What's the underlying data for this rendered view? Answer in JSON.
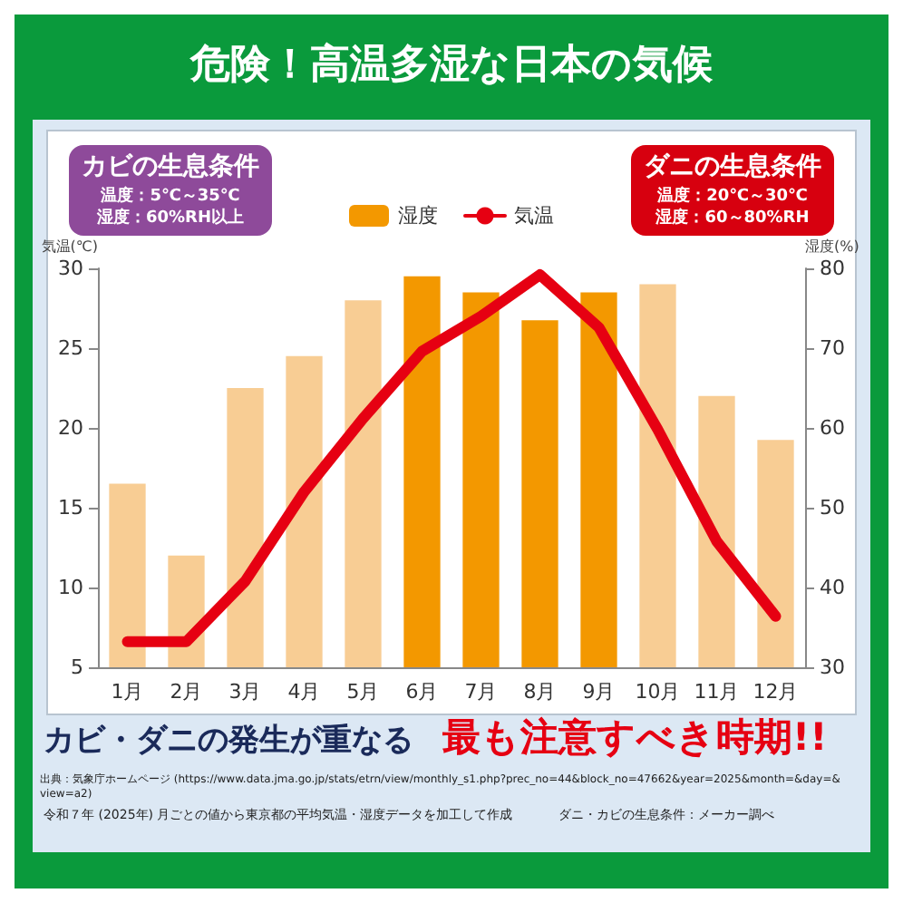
{
  "chart_data": {
    "type": "bar",
    "title": "危険！高温多湿な日本の気候",
    "categories": [
      "1月",
      "2月",
      "3月",
      "4月",
      "5月",
      "6月",
      "7月",
      "8月",
      "9月",
      "10月",
      "11月",
      "12月"
    ],
    "series": [
      {
        "name": "湿度",
        "axis": "y2",
        "color": "#f39800",
        "colors": [
          "#f8cd94",
          "#f8cd94",
          "#f8cd94",
          "#f8cd94",
          "#f8cd94",
          "#f39800",
          "#f39800",
          "#f39800",
          "#f39800",
          "#f8cd94",
          "#f8cd94",
          "#f8cd94"
        ],
        "values": [
          53,
          44,
          65,
          69,
          76,
          79,
          77,
          73.5,
          77,
          78,
          64,
          58.5
        ]
      },
      {
        "name": "気温",
        "type": "line",
        "color": "#e60012",
        "values": [
          6.6,
          6.6,
          10.4,
          16,
          20.6,
          24.8,
          27,
          29.6,
          26.3,
          19.9,
          12.9,
          8.2
        ]
      }
    ],
    "ylabel": "気温(℃)",
    "y2label": "湿度(%)",
    "ylim": [
      5,
      30
    ],
    "yticks": [
      5,
      10,
      15,
      20,
      25,
      30
    ],
    "y2lim": [
      30,
      80
    ],
    "y2ticks": [
      30,
      40,
      50,
      60,
      70,
      80
    ],
    "legend": "top",
    "marker": "none",
    "annotations": [
      "カビの生息条件",
      "温度：5℃～35℃",
      "湿度：60%RH以上",
      "ダニの生息条件",
      "温度：20℃～30℃",
      "湿度：60～80%RH",
      "カビ・ダニの発生が重なる",
      "最も注意すべき時期!!",
      "出典：気象庁ホームページ (https://www.data.jma.go.jp/stats/etrn/view/monthly_s1.php?prec_no=44&block_no=47662&year=2025&month=&day=&view=a2)",
      "令和７年 (2025年) 月ごとの値から東京都の平均気温・湿度データを加工して作成",
      "ダニ・カビの生息条件：メーカー調べ"
    ]
  }
}
